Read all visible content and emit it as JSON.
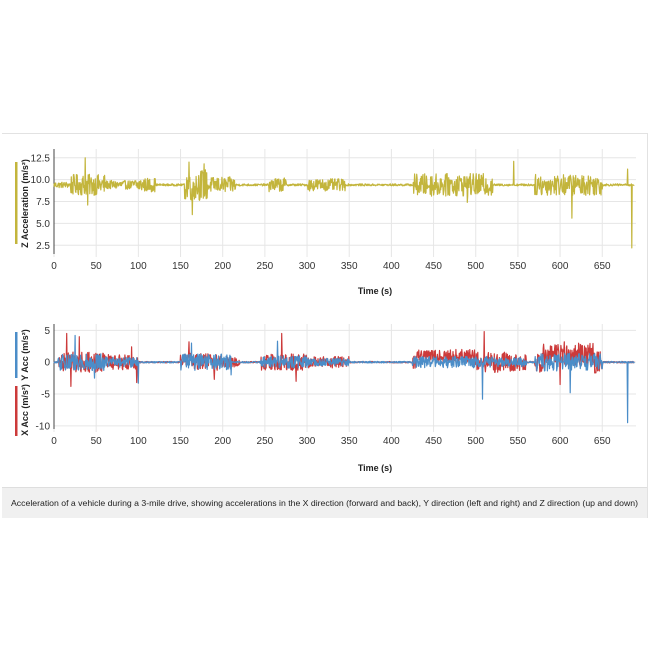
{
  "caption": "Acceleration of a vehicle during a 3-mile drive, showing accelerations in the X direction (forward and back), Y direction (left and right) and Z direction (up and down)",
  "colors": {
    "z": "#c3b53c",
    "x": "#cc3a3a",
    "y": "#4b8dc8",
    "grid": "#e6e6e6"
  },
  "chart_data": [
    {
      "type": "line",
      "xlabel": "Time (s)",
      "ylabel": "Z Acceleration (m/s²)",
      "xlim": [
        0,
        690
      ],
      "ylim": [
        1.5,
        13.5
      ],
      "xticks": [
        0,
        50,
        100,
        150,
        200,
        250,
        300,
        350,
        400,
        450,
        500,
        550,
        600,
        650
      ],
      "yticks": [
        2.5,
        5.0,
        7.5,
        10.0,
        12.5
      ],
      "grid": true,
      "series": [
        {
          "color": "#c3b53c",
          "baseline": 9.4,
          "noise_segments": [
            [
              0,
              40,
              0.35
            ],
            [
              20,
              60,
              1.2
            ],
            [
              60,
              95,
              0.5
            ],
            [
              95,
              120,
              0.8
            ],
            [
              155,
              185,
              1.8
            ],
            [
              185,
              215,
              0.9
            ],
            [
              255,
              275,
              0.8
            ],
            [
              300,
              345,
              0.7
            ],
            [
              425,
              520,
              1.3
            ],
            [
              570,
              650,
              1.2
            ]
          ],
          "spikes": [
            [
              37,
              12.5
            ],
            [
              40,
              7.1
            ],
            [
              160,
              12.0
            ],
            [
              164,
              6.0
            ],
            [
              178,
              11.8
            ],
            [
              490,
              7.4
            ],
            [
              545,
              12.1
            ],
            [
              614,
              5.6
            ],
            [
              680,
              11.2
            ],
            [
              685,
              2.2
            ]
          ]
        }
      ]
    },
    {
      "type": "line",
      "xlabel": "Time (s)",
      "ylabel": "X Acc (m/s²)   Y Acc (m/s²)",
      "xlim": [
        0,
        690
      ],
      "ylim": [
        -10.5,
        6
      ],
      "xticks": [
        0,
        50,
        100,
        150,
        200,
        250,
        300,
        350,
        400,
        450,
        500,
        550,
        600,
        650
      ],
      "yticks": [
        5,
        0,
        -5,
        -10
      ],
      "grid": true,
      "series": [
        {
          "color": "#cc3a3a",
          "baseline": 0,
          "noise_segments": [
            [
              5,
              60,
              1.6
            ],
            [
              60,
              100,
              1.2
            ],
            [
              150,
              200,
              1.4
            ],
            [
              200,
              220,
              0.8
            ],
            [
              245,
              300,
              1.3
            ],
            [
              300,
              350,
              0.9
            ],
            [
              425,
              500,
              1.0
            ],
            [
              500,
              560,
              1.6
            ],
            [
              570,
              650,
              1.8
            ]
          ],
          "spikes": [
            [
              15,
              4.5
            ],
            [
              20,
              -3.8
            ],
            [
              30,
              4.0
            ],
            [
              92,
              2.4
            ],
            [
              98,
              -3.2
            ],
            [
              160,
              3.2
            ],
            [
              190,
              -2.7
            ],
            [
              270,
              4.5
            ],
            [
              287,
              -3.0
            ],
            [
              510,
              4.8
            ],
            [
              600,
              -3.5
            ],
            [
              605,
              3.2
            ]
          ],
          "steps": [
            [
              430,
              500,
              1.0
            ],
            [
              580,
              640,
              1.2
            ]
          ]
        },
        {
          "color": "#4b8dc8",
          "baseline": 0,
          "noise_segments": [
            [
              5,
              60,
              1.3
            ],
            [
              60,
              100,
              0.8
            ],
            [
              150,
              210,
              1.3
            ],
            [
              245,
              300,
              1.0
            ],
            [
              300,
              350,
              0.6
            ],
            [
              425,
              520,
              0.9
            ],
            [
              520,
              560,
              0.7
            ],
            [
              570,
              650,
              1.4
            ]
          ],
          "spikes": [
            [
              25,
              4.2
            ],
            [
              48,
              -2.5
            ],
            [
              100,
              -3.3
            ],
            [
              163,
              3.0
            ],
            [
              210,
              -2.0
            ],
            [
              265,
              3.3
            ],
            [
              508,
              -5.8
            ],
            [
              612,
              -4.8
            ],
            [
              680,
              -9.5
            ]
          ]
        }
      ]
    }
  ]
}
